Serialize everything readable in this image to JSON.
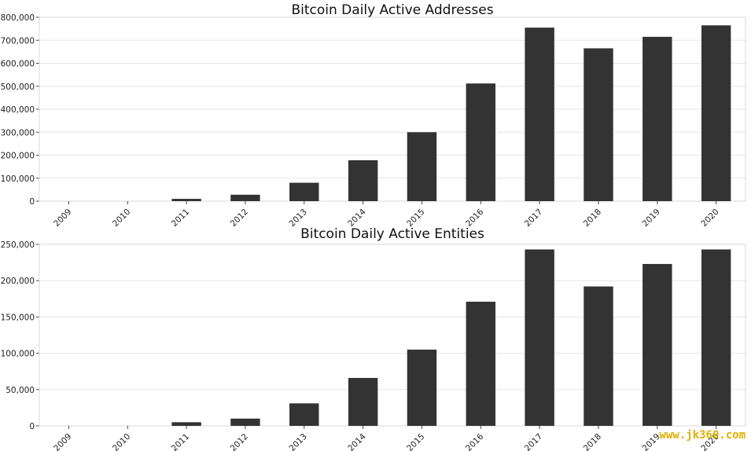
{
  "chart_data": [
    {
      "type": "bar",
      "title": "Bitcoin Daily Active Addresses",
      "categories": [
        "2009",
        "2010",
        "2011",
        "2012",
        "2013",
        "2014",
        "2015",
        "2016",
        "2017",
        "2018",
        "2019",
        "2020"
      ],
      "values": [
        0,
        0,
        10000,
        28000,
        80000,
        178000,
        300000,
        512000,
        755000,
        665000,
        715000,
        765000
      ],
      "ylim": [
        0,
        800000
      ],
      "yticks": [
        0,
        100000,
        200000,
        300000,
        400000,
        500000,
        600000,
        700000,
        800000
      ],
      "ytick_labels": [
        "0",
        "100,000",
        "200,000",
        "300,000",
        "400,000",
        "500,000",
        "600,000",
        "700,000",
        "800,000"
      ],
      "bar_color": "#333333",
      "grid": true
    },
    {
      "type": "bar",
      "title": "Bitcoin Daily Active Entities",
      "categories": [
        "2009",
        "2010",
        "2011",
        "2012",
        "2013",
        "2014",
        "2015",
        "2016",
        "2017",
        "2018",
        "2019",
        "2020"
      ],
      "values": [
        0,
        0,
        5000,
        10000,
        31000,
        66000,
        105000,
        171000,
        243000,
        192000,
        223000,
        243000
      ],
      "ylim": [
        0,
        250000
      ],
      "yticks": [
        0,
        50000,
        100000,
        150000,
        200000,
        250000
      ],
      "ytick_labels": [
        "0",
        "50,000",
        "100,000",
        "150,000",
        "200,000",
        "250,000"
      ],
      "bar_color": "#333333",
      "grid": true
    }
  ],
  "watermark": "www.jk360.com"
}
